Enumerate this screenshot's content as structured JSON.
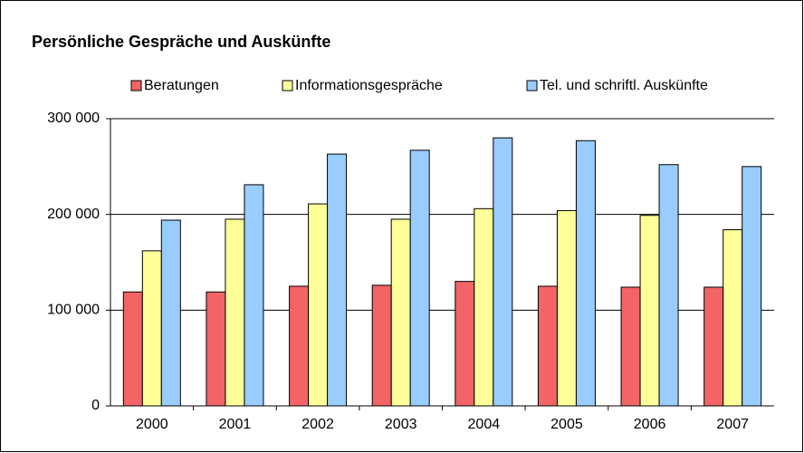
{
  "chart_data": {
    "type": "bar",
    "title": "Persönliche Gespräche und Auskünfte",
    "categories": [
      "2000",
      "2001",
      "2002",
      "2003",
      "2004",
      "2005",
      "2006",
      "2007"
    ],
    "series": [
      {
        "name": "Beratungen",
        "color": "#f26466",
        "values": [
          119000,
          119000,
          125000,
          126000,
          130000,
          125000,
          124000,
          124000
        ]
      },
      {
        "name": "Informationsgespräche",
        "color": "#ffff99",
        "values": [
          162000,
          195000,
          211000,
          195000,
          206000,
          204000,
          199000,
          184000
        ]
      },
      {
        "name": "Tel. und schriftl. Auskünfte",
        "color": "#99ccff",
        "values": [
          194000,
          231000,
          263000,
          267000,
          280000,
          277000,
          252000,
          250000
        ]
      }
    ],
    "ylim": [
      0,
      300000
    ],
    "yticks": [
      {
        "value": 0,
        "label": "0"
      },
      {
        "value": 100000,
        "label": "100 000"
      },
      {
        "value": 200000,
        "label": "200 000"
      },
      {
        "value": 300000,
        "label": "300 000"
      }
    ],
    "grid": true,
    "legend": "top"
  }
}
